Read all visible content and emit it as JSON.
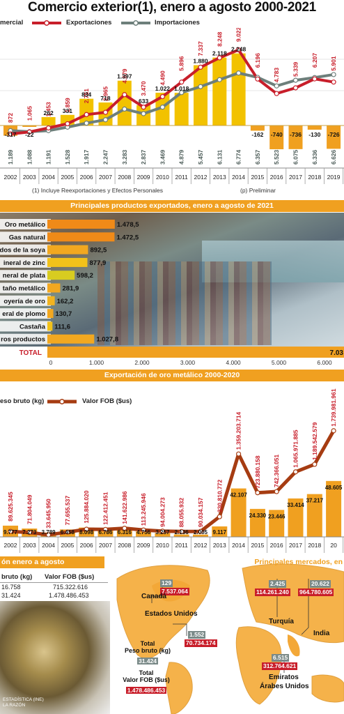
{
  "title": "Comercio exterior(1), enero a agosto 2000-2021",
  "legend": {
    "balance": "mercial",
    "exports": "Exportaciones",
    "imports": "Importaciones"
  },
  "notes": {
    "note1": "(1) Incluye Reexportaciones y Efectos Personales",
    "note2": "(p) Preliminar"
  },
  "colors": {
    "red": "#c81e2a",
    "gray": "#6d7f7b",
    "orange": "#f0a020",
    "yellow": "#f2c200",
    "brown": "#a63c12"
  },
  "chart_data": [
    {
      "type": "line",
      "title": "Comercio exterior(1), enero a agosto 2000-2021",
      "categories": [
        "2002",
        "2003",
        "2004",
        "2005",
        "2006",
        "2007",
        "2008",
        "2009",
        "2010",
        "2011",
        "2012",
        "2013",
        "2014",
        "2015",
        "2016",
        "2017",
        "2018",
        "2019"
      ],
      "series": [
        {
          "name": "Exportaciones",
          "values_shown": [
            "872",
            "1.065",
            "1.453",
            "1.859",
            "2.751",
            "2.965",
            "4.679",
            "3.470",
            "4.490",
            "5.896",
            "7.337",
            "8.248",
            "9.022",
            "6.196",
            "4.783",
            "5.339",
            "6.207",
            "5.901"
          ]
        },
        {
          "name": "Importaciones",
          "values_shown": [
            "1.189",
            "1.088",
            "1.191",
            "1.528",
            "1.917",
            "2.247",
            "3.283",
            "2.837",
            "3.469",
            "4.879",
            "5.457",
            "6.131",
            "6.774",
            "6.357",
            "5.523",
            "6.075",
            "6.336",
            "6.626"
          ]
        },
        {
          "name": "mercial",
          "values_shown": [
            "-317",
            "-22",
            "262",
            "331",
            "834",
            "718",
            "1.397",
            "633",
            "1.022",
            "1.018",
            "1.880",
            "2.118",
            "2.248",
            "-162",
            "-740",
            "-736",
            "-130",
            "-726"
          ]
        }
      ],
      "exports": [
        872,
        1065,
        1453,
        1859,
        2751,
        2965,
        4679,
        3470,
        4490,
        5896,
        7337,
        8248,
        9022,
        6196,
        4783,
        5339,
        6207,
        5901
      ],
      "imports": [
        1189,
        1088,
        1191,
        1528,
        1917,
        2247,
        3283,
        2837,
        3469,
        4879,
        5457,
        6131,
        6774,
        6357,
        5523,
        6075,
        6336,
        6626
      ],
      "balance": [
        -317,
        -22,
        262,
        331,
        834,
        718,
        1397,
        633,
        1022,
        1018,
        1880,
        2118,
        2248,
        -162,
        -740,
        -736,
        -130,
        -726
      ]
    },
    {
      "type": "bar",
      "title": "Principales productos exportados, enero a agosto de 2021",
      "categories": [
        "Oro metálico",
        "Gas natural",
        "dos de la soya",
        "ineral de zinc",
        "neral de plata",
        "taño metálico",
        "oyería de oro",
        "eral de plomo",
        "Castaña",
        "ros productos"
      ],
      "values": [
        1478.5,
        1472.5,
        892.5,
        877.9,
        598.2,
        281.9,
        162.2,
        130.7,
        111.6,
        1027.8
      ],
      "values_shown": [
        "1.478,5",
        "1.472,5",
        "892,5",
        "877,9",
        "598,2",
        "281,9",
        "162,2",
        "130,7",
        "111,6",
        "1.027,8"
      ],
      "total_label": "TOTAL",
      "total_shown": "7.03",
      "xticks": [
        "0",
        "1.000",
        "2.000",
        "3.000",
        "4.000",
        "5.000",
        "6.000"
      ],
      "xlim": [
        0,
        6500
      ]
    },
    {
      "type": "bar",
      "title": "Exportación de oro metálico 2000-2020",
      "categories": [
        "2002",
        "2003",
        "2004",
        "2005",
        "2006",
        "2007",
        "2008",
        "2009",
        "2010",
        "2011",
        "2012",
        "2013",
        "2014",
        "2015",
        "2016",
        "2017",
        "2018",
        "20"
      ],
      "series": [
        {
          "name": "eso bruto (kg)",
          "values": [
            9777,
            7273,
            3789,
            6458,
            8098,
            6786,
            6316,
            4756,
            3257,
            2136,
            2005,
            9117,
            42107,
            24330,
            23446,
            33414,
            37217,
            48605
          ],
          "values_shown": [
            "9.777",
            "7.273",
            "3.789",
            "6.458",
            "8.098",
            "6.786",
            "6.316",
            "4.756",
            "3.257",
            "2.136",
            "2.005",
            "9.117",
            "42.107",
            "24.330",
            "23.446",
            "33.414",
            "37.217",
            "48.605"
          ]
        },
        {
          "name": "Valor FOB ($us)",
          "values": [
            89625345,
            71804049,
            33645950,
            77655537,
            125884020,
            122412451,
            141622986,
            113245946,
            94004273,
            88055932,
            90034157,
            330810772,
            1359203714,
            723880158,
            742366051,
            1065971885,
            1189542579,
            1739981961
          ],
          "values_shown": [
            "89.625.345",
            "71.804.049",
            "33.645.950",
            "77.655.537",
            "125.884.020",
            "122.412.451",
            "141.622.986",
            "113.245.946",
            "94.004.273",
            "88.055.932",
            "90.034.157",
            "330.810.772",
            "1.359.203.714",
            "723.880.158",
            "742.366.051",
            "1.065.971.885",
            "1.189.542.579",
            "1.739.981.961"
          ]
        }
      ]
    }
  ],
  "section2_title": "Principales productos exportados, enero a agosto de 2021",
  "section3_title": "Exportación de oro metálico 2000-2020",
  "section3_legend": {
    "weight": "eso bruto (kg)",
    "fob": "Valor FOB ($us)"
  },
  "section4": {
    "title": "ón enero a agosto",
    "col1": "bruto (kg)",
    "col2": "Valor FOB ($us)",
    "row1": {
      "c1": "16.758",
      "c2": "715.322.616"
    },
    "row2": {
      "c1": "31.424",
      "c2": "1.478.486.453"
    },
    "source": "ESTADÍSTICA (INE)\nLA RAZÓN"
  },
  "map": {
    "title": "Principales mercados, en",
    "canada": {
      "name": "Canadá",
      "kg": "129",
      "fob": "7.537.064"
    },
    "usa": {
      "name": "Estados Unidos",
      "kg": "1.552",
      "fob": "70.734.174"
    },
    "turkey": {
      "name": "Turquía",
      "kg": "2.425",
      "fob": "114.261.240"
    },
    "india": {
      "name": "India",
      "kg": "20.622",
      "fob": "964.780.605"
    },
    "uae": {
      "name1": "Emiratos",
      "name2": "Árabes Unidos",
      "kg": "6.515",
      "fob": "312.764.621"
    },
    "total_weight_label1": "Total",
    "total_weight_label2": "Peso bruto (kg)",
    "total_weight": "31.424",
    "total_fob_label1": "Total",
    "total_fob_label2": "Valor FOB ($us)",
    "total_fob": "1.478.486.453"
  }
}
